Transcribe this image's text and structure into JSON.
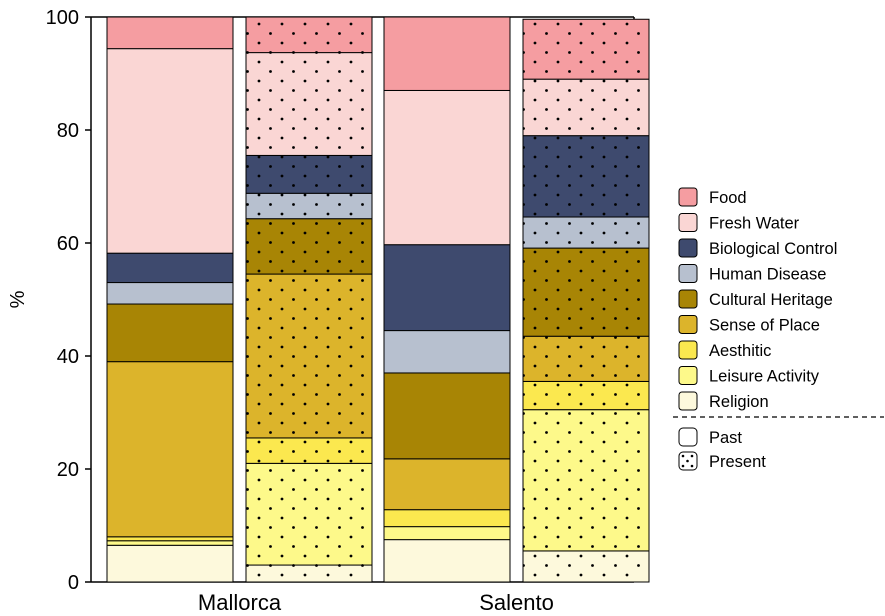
{
  "chart_data": {
    "type": "bar",
    "stacked": true,
    "ylabel": "%",
    "ylim": [
      0,
      100
    ],
    "yticks": [
      0,
      20,
      40,
      60,
      80,
      100
    ],
    "grid": false,
    "legend_position": "right",
    "categories": [
      "Mallorca",
      "Salento"
    ],
    "periods": [
      "Past",
      "Present"
    ],
    "series": [
      {
        "name": "Religion",
        "color": "#fdf9dc",
        "values": {
          "Mallorca": {
            "Past": 6.5,
            "Present": 3.0
          },
          "Salento": {
            "Past": 7.5,
            "Present": 5.5
          }
        }
      },
      {
        "name": "Leisure Activity",
        "color": "#fdf98a",
        "values": {
          "Mallorca": {
            "Past": 0.8,
            "Present": 18.0
          },
          "Salento": {
            "Past": 2.3,
            "Present": 25.0
          }
        }
      },
      {
        "name": "Aesthitic",
        "color": "#fbe84f",
        "values": {
          "Mallorca": {
            "Past": 0.7,
            "Present": 4.5
          },
          "Salento": {
            "Past": 3.0,
            "Present": 5.0
          }
        }
      },
      {
        "name": "Sense of Place",
        "color": "#dcb42b",
        "values": {
          "Mallorca": {
            "Past": 31.0,
            "Present": 29.0
          },
          "Salento": {
            "Past": 9.0,
            "Present": 8.0
          }
        }
      },
      {
        "name": "Cultural Heritage",
        "color": "#a88505",
        "values": {
          "Mallorca": {
            "Past": 10.2,
            "Present": 9.8
          },
          "Salento": {
            "Past": 15.2,
            "Present": 15.6
          }
        }
      },
      {
        "name": "Human Disease",
        "color": "#b7c0cf",
        "values": {
          "Mallorca": {
            "Past": 3.8,
            "Present": 4.5
          },
          "Salento": {
            "Past": 7.5,
            "Present": 5.5
          }
        }
      },
      {
        "name": "Biological Control",
        "color": "#3e4a6e",
        "values": {
          "Mallorca": {
            "Past": 5.2,
            "Present": 6.7
          },
          "Salento": {
            "Past": 15.2,
            "Present": 14.4
          }
        }
      },
      {
        "name": "Fresh Water",
        "color": "#fad6d4",
        "values": {
          "Mallorca": {
            "Past": 36.2,
            "Present": 18.2
          },
          "Salento": {
            "Past": 27.3,
            "Present": 10.0
          }
        }
      },
      {
        "name": "Food",
        "color": "#f59da1",
        "values": {
          "Mallorca": {
            "Past": 5.6,
            "Present": 6.3
          },
          "Salento": {
            "Past": 13.0,
            "Present": 10.6
          }
        }
      }
    ],
    "legend": {
      "items": [
        "Food",
        "Fresh Water",
        "Biological Control",
        "Human Disease",
        "Cultural Heritage",
        "Sense of Place",
        "Aesthitic",
        "Leisure Activity",
        "Religion"
      ],
      "pattern_items": [
        "Past",
        "Present"
      ]
    }
  }
}
